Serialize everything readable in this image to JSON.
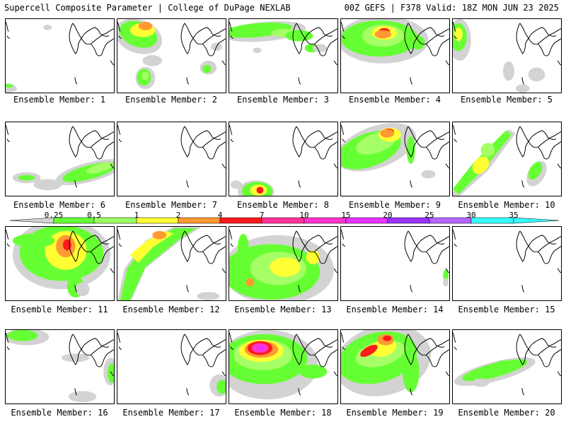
{
  "header": {
    "title": "Supercell Composite Parameter | College of DuPage NEXLAB",
    "valid": "00Z GEFS | F378 Valid: 18Z MON JUN 23 2025"
  },
  "colors": {
    "lt_gray": "#d3d3d3",
    "green": "#66ff33",
    "lt_green": "#a6ff66",
    "yellow": "#ffff33",
    "orange": "#ff9933",
    "red": "#ff1a1a",
    "pink": "#ff33cc",
    "magenta": "#e633ff",
    "purple": "#9933ff",
    "violet": "#b366ff",
    "cyan": "#33ffff"
  },
  "colorbar": {
    "ticks": [
      "0.25",
      "0.5",
      "1",
      "2",
      "4",
      "7",
      "10",
      "15",
      "20",
      "25",
      "30",
      "35"
    ],
    "bins": [
      "#d3d3d3",
      "#66ff33",
      "#99ff66",
      "#ffff33",
      "#ff9933",
      "#ff1a1a",
      "#ff3399",
      "#ff33cc",
      "#e633ff",
      "#9933ff",
      "#b366ff",
      "#33ffff"
    ]
  },
  "members": [
    {
      "label": "Ensemble Member: 1"
    },
    {
      "label": "Ensemble Member: 2"
    },
    {
      "label": "Ensemble Member: 3"
    },
    {
      "label": "Ensemble Member: 4"
    },
    {
      "label": "Ensemble Member: 5"
    },
    {
      "label": "Ensemble Member: 6"
    },
    {
      "label": "Ensemble Member: 7"
    },
    {
      "label": "Ensemble Member: 8"
    },
    {
      "label": "Ensemble Member: 9"
    },
    {
      "label": "Ensemble Member: 10"
    },
    {
      "label": "Ensemble Member: 11"
    },
    {
      "label": "Ensemble Member: 12"
    },
    {
      "label": "Ensemble Member: 13"
    },
    {
      "label": "Ensemble Member: 14"
    },
    {
      "label": "Ensemble Member: 15"
    },
    {
      "label": "Ensemble Member: 16"
    },
    {
      "label": "Ensemble Member: 17"
    },
    {
      "label": "Ensemble Member: 18"
    },
    {
      "label": "Ensemble Member: 19"
    },
    {
      "label": "Ensemble Member: 20"
    }
  ]
}
